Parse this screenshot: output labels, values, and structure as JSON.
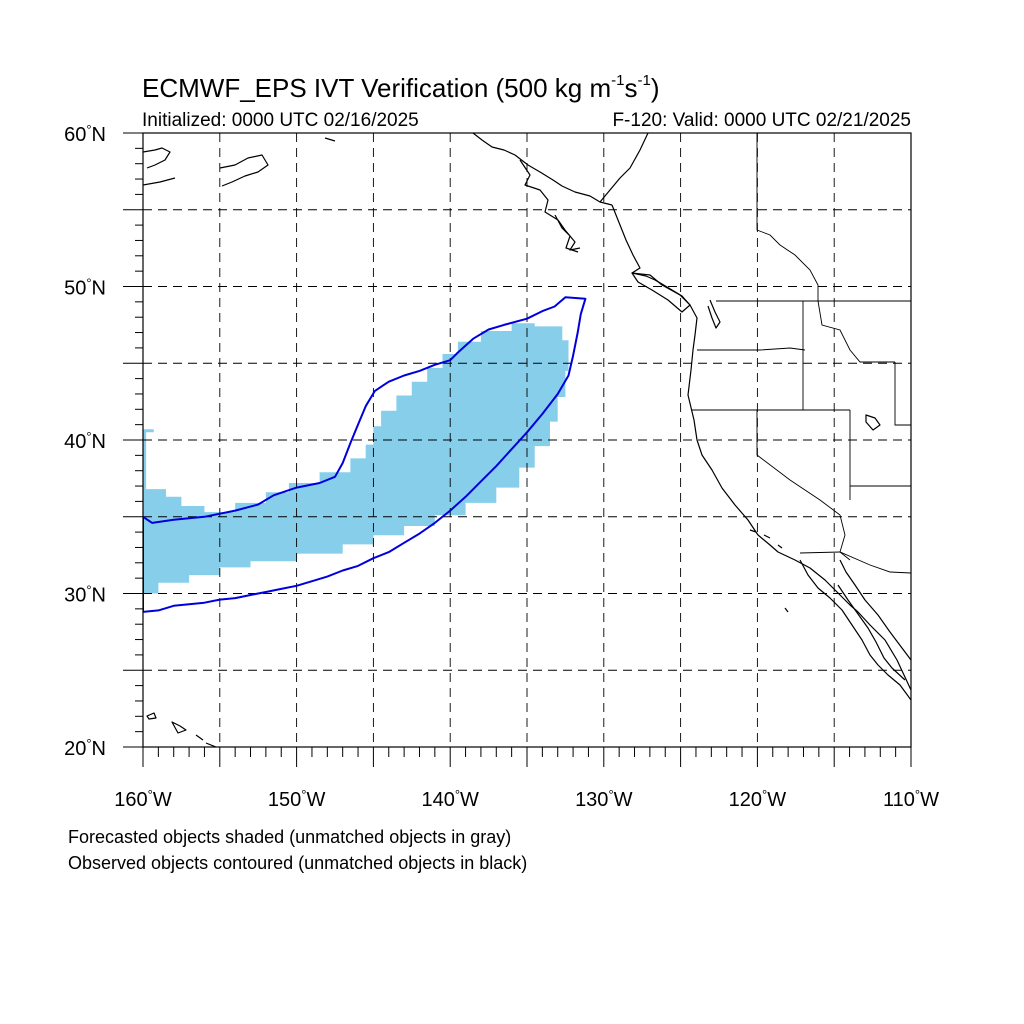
{
  "title": {
    "main": "ECMWF_EPS IVT Verification (500 kg m",
    "exp1": "-1",
    "mid": "s",
    "exp2": "-1",
    "close": ")"
  },
  "subtitle": {
    "initialized": "Initialized: 0000 UTC 02/16/2025",
    "valid": "F-120: Valid: 0000 UTC 02/21/2025"
  },
  "notes": {
    "forecast": "Forecasted objects shaded (unmatched objects in gray)",
    "observed": "Observed objects contoured (unmatched objects in black)"
  },
  "axes": {
    "lat_labels": [
      {
        "value": 60,
        "text": "60",
        "hemi": "N"
      },
      {
        "value": 50,
        "text": "50",
        "hemi": "N"
      },
      {
        "value": 40,
        "text": "40",
        "hemi": "N"
      },
      {
        "value": 30,
        "text": "30",
        "hemi": "N"
      },
      {
        "value": 20,
        "text": "20",
        "hemi": "N"
      }
    ],
    "lon_labels": [
      {
        "value": -160,
        "text": "160",
        "hemi": "W"
      },
      {
        "value": -150,
        "text": "150",
        "hemi": "W"
      },
      {
        "value": -140,
        "text": "140",
        "hemi": "W"
      },
      {
        "value": -130,
        "text": "130",
        "hemi": "W"
      },
      {
        "value": -120,
        "text": "120",
        "hemi": "W"
      },
      {
        "value": -110,
        "text": "110",
        "hemi": "W"
      }
    ],
    "extent": {
      "lon_min": -160,
      "lon_max": -110,
      "lat_min": 20,
      "lat_max": 60
    },
    "grid_lines": "dashed every 5 degrees"
  },
  "colors": {
    "forecast_fill": "#87ceeb",
    "observed_contour": "#0000dd",
    "coastline": "#000000",
    "grid": "#000000"
  },
  "objects": {
    "forecast_shaded": {
      "lonlat": [
        [
          -160,
          30
        ],
        [
          -159,
          30
        ],
        [
          -159,
          30.7
        ],
        [
          -157,
          30.7
        ],
        [
          -157,
          31.2
        ],
        [
          -155,
          31.2
        ],
        [
          -155,
          31.7
        ],
        [
          -153,
          31.7
        ],
        [
          -153,
          32.1
        ],
        [
          -150,
          32.1
        ],
        [
          -150,
          32.6
        ],
        [
          -147,
          32.6
        ],
        [
          -147,
          33.2
        ],
        [
          -145,
          33.2
        ],
        [
          -145,
          33.8
        ],
        [
          -143,
          33.8
        ],
        [
          -143,
          34.4
        ],
        [
          -141,
          34.4
        ],
        [
          -141,
          35.1
        ],
        [
          -139,
          35.1
        ],
        [
          -139,
          35.9
        ],
        [
          -137,
          35.9
        ],
        [
          -137,
          36.9
        ],
        [
          -135.5,
          36.9
        ],
        [
          -135.5,
          38.2
        ],
        [
          -134.5,
          38.2
        ],
        [
          -134.5,
          39.6
        ],
        [
          -133.5,
          39.6
        ],
        [
          -133.5,
          41.2
        ],
        [
          -133,
          41.2
        ],
        [
          -133,
          42.8
        ],
        [
          -132.5,
          42.8
        ],
        [
          -132.5,
          44.5
        ],
        [
          -132.3,
          44.5
        ],
        [
          -132.3,
          46.5
        ],
        [
          -132.7,
          46.5
        ],
        [
          -132.7,
          47.4
        ],
        [
          -134.5,
          47.4
        ],
        [
          -134.5,
          47.6
        ],
        [
          -136,
          47.6
        ],
        [
          -136,
          47.1
        ],
        [
          -138,
          47.1
        ],
        [
          -138,
          46.4
        ],
        [
          -139.5,
          46.4
        ],
        [
          -139.5,
          45.6
        ],
        [
          -140.5,
          45.6
        ],
        [
          -140.5,
          44.7
        ],
        [
          -141.5,
          44.7
        ],
        [
          -141.5,
          43.8
        ],
        [
          -142.5,
          43.8
        ],
        [
          -142.5,
          42.9
        ],
        [
          -143.5,
          42.9
        ],
        [
          -143.5,
          41.9
        ],
        [
          -144.5,
          41.9
        ],
        [
          -144.5,
          40.9
        ],
        [
          -145,
          40.9
        ],
        [
          -145,
          39.7
        ],
        [
          -145.5,
          39.7
        ],
        [
          -145.5,
          38.8
        ],
        [
          -146.5,
          38.8
        ],
        [
          -146.5,
          37.9
        ],
        [
          -148.5,
          37.9
        ],
        [
          -148.5,
          37.2
        ],
        [
          -150.5,
          37.2
        ],
        [
          -150.5,
          36.6
        ],
        [
          -152,
          36.6
        ],
        [
          -152,
          35.9
        ],
        [
          -154,
          35.9
        ],
        [
          -154,
          35.3
        ],
        [
          -156,
          35.3
        ],
        [
          -156,
          35.7
        ],
        [
          -157.5,
          35.7
        ],
        [
          -157.5,
          36.3
        ],
        [
          -158.5,
          36.3
        ],
        [
          -158.5,
          36.8
        ],
        [
          -159.8,
          36.8
        ],
        [
          -159.8,
          40.5
        ],
        [
          -159.3,
          40.5
        ],
        [
          -159.3,
          40.7
        ],
        [
          -160,
          40.7
        ]
      ]
    },
    "observed_contour": {
      "lonlat": [
        [
          -160,
          28.8
        ],
        [
          -159,
          28.9
        ],
        [
          -158,
          29.2
        ],
        [
          -157,
          29.3
        ],
        [
          -156,
          29.4
        ],
        [
          -155,
          29.6
        ],
        [
          -154,
          29.7
        ],
        [
          -153,
          29.9
        ],
        [
          -152,
          30.1
        ],
        [
          -151,
          30.3
        ],
        [
          -150,
          30.5
        ],
        [
          -149,
          30.8
        ],
        [
          -148,
          31.1
        ],
        [
          -147,
          31.5
        ],
        [
          -146,
          31.8
        ],
        [
          -145,
          32.3
        ],
        [
          -144,
          32.7
        ],
        [
          -143,
          33.3
        ],
        [
          -142,
          33.9
        ],
        [
          -141,
          34.6
        ],
        [
          -140,
          35.4
        ],
        [
          -139,
          36.3
        ],
        [
          -138,
          37.3
        ],
        [
          -137,
          38.3
        ],
        [
          -136,
          39.4
        ],
        [
          -135,
          40.5
        ],
        [
          -134,
          41.7
        ],
        [
          -133,
          43.0
        ],
        [
          -132.3,
          44.2
        ],
        [
          -132,
          45.5
        ],
        [
          -131.7,
          47
        ],
        [
          -131.5,
          48.2
        ],
        [
          -131.2,
          49.2
        ],
        [
          -132.5,
          49.3
        ],
        [
          -133.2,
          48.7
        ],
        [
          -134,
          48.4
        ],
        [
          -135,
          47.9
        ],
        [
          -136.5,
          47.5
        ],
        [
          -137.5,
          47.2
        ],
        [
          -138.5,
          46.6
        ],
        [
          -139.5,
          45.7
        ],
        [
          -140,
          45.2
        ],
        [
          -141,
          44.9
        ],
        [
          -142,
          44.5
        ],
        [
          -143,
          44.2
        ],
        [
          -144,
          43.8
        ],
        [
          -144.9,
          43.2
        ],
        [
          -145.5,
          42.2
        ],
        [
          -146,
          41.0
        ],
        [
          -146.5,
          39.8
        ],
        [
          -147,
          38.5
        ],
        [
          -147.5,
          37.6
        ],
        [
          -148.5,
          37.2
        ],
        [
          -150,
          36.9
        ],
        [
          -151.5,
          36.4
        ],
        [
          -152.5,
          35.8
        ],
        [
          -154,
          35.4
        ],
        [
          -156,
          35.0
        ],
        [
          -158,
          34.8
        ],
        [
          -159.4,
          34.6
        ],
        [
          -160,
          35
        ]
      ]
    }
  }
}
